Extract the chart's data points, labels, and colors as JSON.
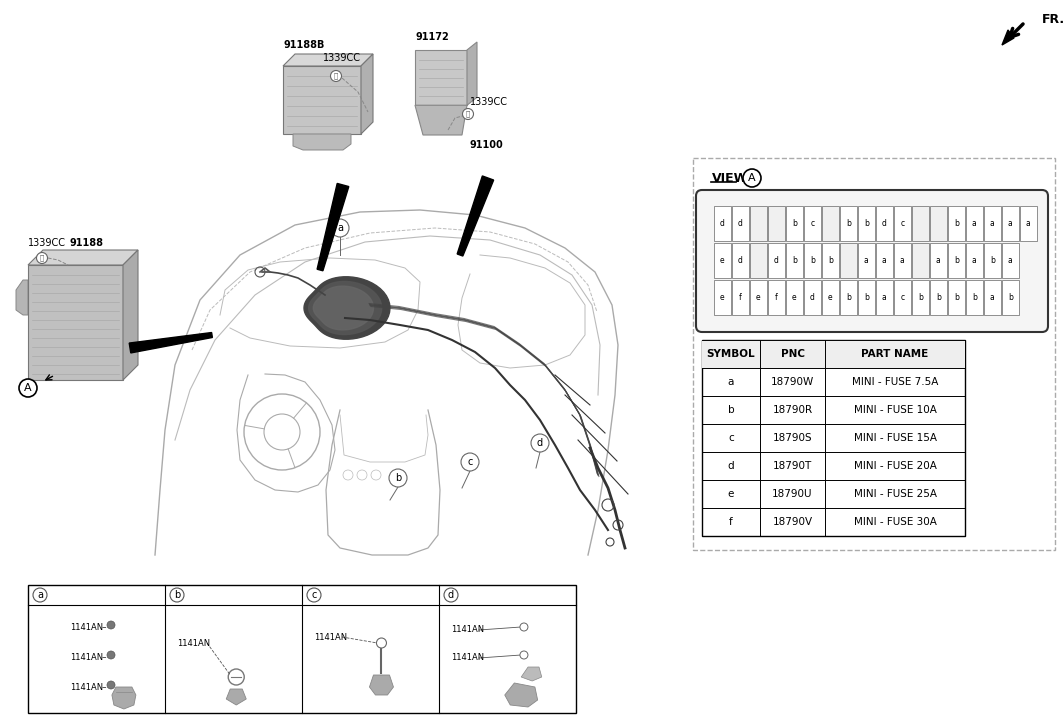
{
  "bg_color": "#ffffff",
  "fig_width": 10.63,
  "fig_height": 7.27,
  "dpi": 100,
  "view_a_title": "VIEW",
  "view_a_circle_label": "A",
  "fuse_rows": [
    [
      "d",
      "d",
      "",
      "",
      "b",
      "c",
      "",
      "b",
      "b",
      "d",
      "c",
      "",
      "",
      "b",
      "a",
      "a",
      "a",
      "a"
    ],
    [
      "e",
      "d",
      "",
      "d",
      "b",
      "b",
      "b",
      "",
      "a",
      "a",
      "a",
      "",
      "a",
      "b",
      "a",
      "b",
      "a"
    ],
    [
      "e",
      "f",
      "e",
      "f",
      "e",
      "d",
      "e",
      "b",
      "b",
      "a",
      "c",
      "b",
      "b",
      "b",
      "b",
      "a",
      "b"
    ]
  ],
  "table_headers": [
    "SYMBOL",
    "PNC",
    "PART NAME"
  ],
  "table_rows": [
    [
      "a",
      "18790W",
      "MINI - FUSE 7.5A"
    ],
    [
      "b",
      "18790R",
      "MINI - FUSE 10A"
    ],
    [
      "c",
      "18790S",
      "MINI - FUSE 15A"
    ],
    [
      "d",
      "18790T",
      "MINI - FUSE 20A"
    ],
    [
      "e",
      "18790U",
      "MINI - FUSE 25A"
    ],
    [
      "f",
      "18790V",
      "MINI - FUSE 30A"
    ]
  ],
  "bottom_sections": [
    "a",
    "b",
    "c",
    "d"
  ],
  "bottom_labels": [
    [
      "1141AN",
      "1141AN",
      "1141AN"
    ],
    [
      "1141AN"
    ],
    [
      "1141AN"
    ],
    [
      "1141AN",
      "1141AN"
    ]
  ],
  "fr_arrow_label": "FR.",
  "text_color": "#000000",
  "gray_color": "#888888",
  "dark_gray": "#555555",
  "light_gray": "#cccccc",
  "mid_gray": "#999999",
  "dashed_border_color": "#aaaaaa",
  "table_border_color": "#000000"
}
